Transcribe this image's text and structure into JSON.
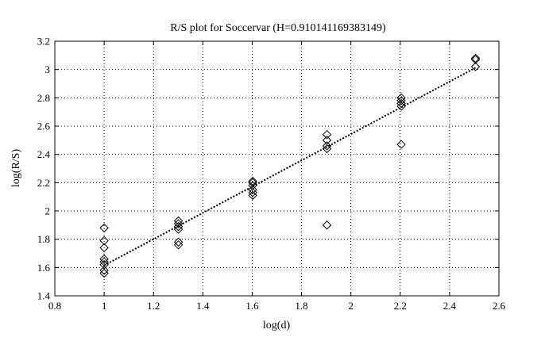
{
  "chart_data": {
    "type": "scatter",
    "title": "R/S plot for Soccervar (H=0.910141169383149)",
    "xlabel": "log(d)",
    "ylabel": "log(R/S)",
    "xlim": [
      0.8,
      2.6
    ],
    "ylim": [
      1.4,
      3.2
    ],
    "xticks": [
      "0.8",
      "1",
      "1.2",
      "1.4",
      "1.6",
      "1.8",
      "2",
      "2.2",
      "2.4",
      "2.6"
    ],
    "yticks": [
      "1.4",
      "1.6",
      "1.8",
      "2",
      "2.2",
      "2.4",
      "2.6",
      "2.8",
      "3",
      "3.2"
    ],
    "grid": true,
    "marker": "diamond",
    "series": [
      {
        "points": [
          [
            1.0,
            1.88
          ],
          [
            1.0,
            1.79
          ],
          [
            1.0,
            1.74
          ],
          [
            1.0,
            1.66
          ],
          [
            1.0,
            1.64
          ],
          [
            1.0,
            1.62
          ],
          [
            1.0,
            1.58
          ],
          [
            1.0,
            1.56
          ],
          [
            1.301,
            1.93
          ],
          [
            1.301,
            1.91
          ],
          [
            1.301,
            1.89
          ],
          [
            1.301,
            1.87
          ],
          [
            1.301,
            1.78
          ],
          [
            1.301,
            1.76
          ],
          [
            1.602,
            2.21
          ],
          [
            1.602,
            2.2
          ],
          [
            1.602,
            2.18
          ],
          [
            1.602,
            2.15
          ],
          [
            1.602,
            2.13
          ],
          [
            1.602,
            2.11
          ],
          [
            1.903,
            2.54
          ],
          [
            1.903,
            2.5
          ],
          [
            1.903,
            2.46
          ],
          [
            1.903,
            2.44
          ],
          [
            1.903,
            1.9
          ],
          [
            2.204,
            2.8
          ],
          [
            2.204,
            2.78
          ],
          [
            2.204,
            2.76
          ],
          [
            2.204,
            2.74
          ],
          [
            2.204,
            2.47
          ],
          [
            2.505,
            3.08
          ],
          [
            2.505,
            3.07
          ],
          [
            2.505,
            3.02
          ]
        ]
      }
    ],
    "fit_line": {
      "style": "dotted",
      "x": [
        1.0,
        2.505
      ],
      "y": [
        1.615,
        3.012
      ]
    }
  }
}
